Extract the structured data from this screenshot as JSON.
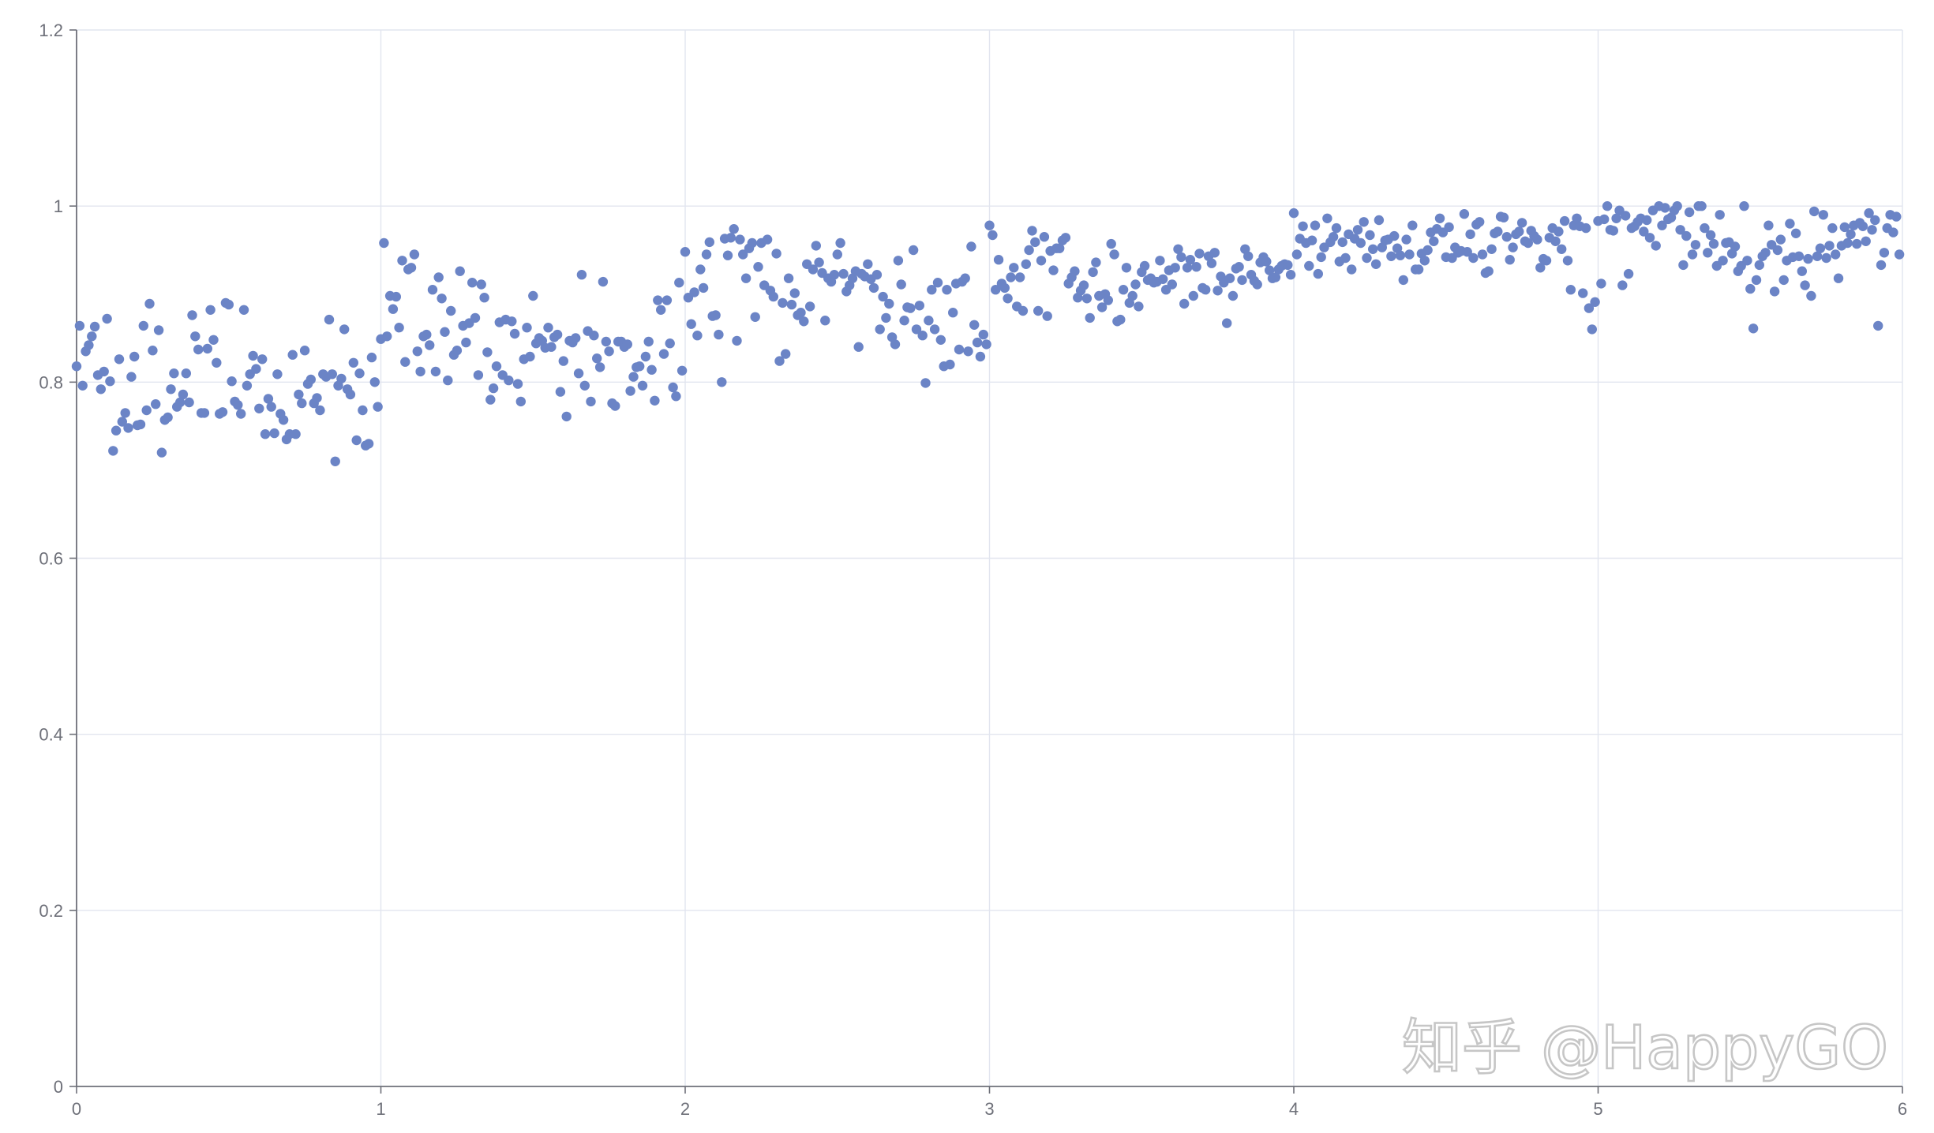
{
  "watermark": "知乎 @HappyGO",
  "colors": {
    "point": "#6b84c6",
    "grid": "#e2e5ef",
    "axis": "#6e7079",
    "tick_text": "#6e7079",
    "watermark": "#c4c4c4"
  },
  "chart_data": {
    "type": "scatter",
    "title": "",
    "xlabel": "",
    "ylabel": "",
    "xlim": [
      0,
      6
    ],
    "ylim": [
      0,
      1.2
    ],
    "x_ticks": [
      "0",
      "1",
      "2",
      "3",
      "4",
      "5",
      "6"
    ],
    "y_ticks": [
      "0",
      "0.2",
      "0.4",
      "0.6",
      "0.8",
      "1",
      "1.2"
    ],
    "grid": true,
    "legend": "none",
    "series": [
      {
        "points_per_interval": 100,
        "interval_step": 0.01,
        "values": [
          0.818,
          0.864,
          0.796,
          0.835,
          0.842,
          0.852,
          0.863,
          0.808,
          0.792,
          0.812,
          0.872,
          0.801,
          0.722,
          0.745,
          0.826,
          0.755,
          0.765,
          0.748,
          0.806,
          0.829,
          0.751,
          0.752,
          0.864,
          0.768,
          0.889,
          0.836,
          0.775,
          0.859,
          0.72,
          0.757,
          0.76,
          0.792,
          0.81,
          0.772,
          0.777,
          0.786,
          0.81,
          0.777,
          0.876,
          0.852,
          0.837,
          0.765,
          0.765,
          0.838,
          0.882,
          0.848,
          0.822,
          0.764,
          0.766,
          0.89,
          0.888,
          0.801,
          0.778,
          0.774,
          0.764,
          0.882,
          0.796,
          0.809,
          0.83,
          0.815,
          0.77,
          0.826,
          0.741,
          0.781,
          0.772,
          0.742,
          0.809,
          0.764,
          0.757,
          0.735,
          0.741,
          0.831,
          0.741,
          0.786,
          0.776,
          0.836,
          0.798,
          0.803,
          0.776,
          0.782,
          0.768,
          0.809,
          0.806,
          0.871,
          0.809,
          0.71,
          0.796,
          0.804,
          0.86,
          0.792,
          0.786,
          0.822,
          0.734,
          0.81,
          0.768,
          0.728,
          0.73,
          0.828,
          0.8,
          0.772
        ]
      },
      {
        "points_per_interval": 100,
        "interval_step": 0.01,
        "values": [
          0.849,
          0.958,
          0.852,
          0.898,
          0.883,
          0.897,
          0.862,
          0.938,
          0.823,
          0.928,
          0.93,
          0.945,
          0.835,
          0.812,
          0.852,
          0.854,
          0.842,
          0.905,
          0.812,
          0.919,
          0.895,
          0.857,
          0.802,
          0.881,
          0.831,
          0.836,
          0.926,
          0.864,
          0.845,
          0.867,
          0.913,
          0.873,
          0.808,
          0.911,
          0.896,
          0.834,
          0.78,
          0.793,
          0.818,
          0.868,
          0.808,
          0.871,
          0.802,
          0.869,
          0.855,
          0.798,
          0.778,
          0.826,
          0.862,
          0.829,
          0.898,
          0.844,
          0.85,
          0.847,
          0.839,
          0.862,
          0.84,
          0.851,
          0.854,
          0.789,
          0.824,
          0.761,
          0.847,
          0.845,
          0.85,
          0.81,
          0.922,
          0.796,
          0.858,
          0.778,
          0.853,
          0.827,
          0.817,
          0.914,
          0.846,
          0.835,
          0.776,
          0.773,
          0.846,
          0.846,
          0.84,
          0.843,
          0.79,
          0.806,
          0.817,
          0.818,
          0.796,
          0.829,
          0.846,
          0.814,
          0.779,
          0.893,
          0.882,
          0.832,
          0.893,
          0.844,
          0.794,
          0.784,
          0.913,
          0.813
        ]
      },
      {
        "points_per_interval": 100,
        "interval_step": 0.01,
        "values": [
          0.948,
          0.896,
          0.866,
          0.902,
          0.853,
          0.928,
          0.907,
          0.945,
          0.959,
          0.875,
          0.876,
          0.854,
          0.8,
          0.963,
          0.944,
          0.964,
          0.974,
          0.847,
          0.962,
          0.945,
          0.918,
          0.952,
          0.958,
          0.874,
          0.931,
          0.958,
          0.91,
          0.962,
          0.904,
          0.897,
          0.946,
          0.824,
          0.89,
          0.832,
          0.918,
          0.888,
          0.901,
          0.876,
          0.879,
          0.869,
          0.934,
          0.886,
          0.928,
          0.955,
          0.936,
          0.924,
          0.87,
          0.918,
          0.914,
          0.922,
          0.945,
          0.958,
          0.923,
          0.903,
          0.91,
          0.918,
          0.926,
          0.84,
          0.923,
          0.92,
          0.934,
          0.917,
          0.907,
          0.922,
          0.86,
          0.897,
          0.873,
          0.889,
          0.851,
          0.843,
          0.938,
          0.911,
          0.87,
          0.885,
          0.884,
          0.95,
          0.86,
          0.887,
          0.853,
          0.799,
          0.87,
          0.905,
          0.86,
          0.913,
          0.848,
          0.818,
          0.905,
          0.82,
          0.879,
          0.912,
          0.837,
          0.914,
          0.918,
          0.835,
          0.954,
          0.865,
          0.845,
          0.829,
          0.854,
          0.843
        ]
      },
      {
        "points_per_interval": 100,
        "interval_step": 0.01,
        "values": [
          0.978,
          0.967,
          0.905,
          0.939,
          0.912,
          0.907,
          0.895,
          0.919,
          0.93,
          0.886,
          0.919,
          0.881,
          0.934,
          0.95,
          0.972,
          0.959,
          0.881,
          0.938,
          0.965,
          0.875,
          0.949,
          0.927,
          0.952,
          0.952,
          0.961,
          0.964,
          0.912,
          0.919,
          0.926,
          0.896,
          0.904,
          0.91,
          0.895,
          0.873,
          0.925,
          0.936,
          0.898,
          0.885,
          0.9,
          0.893,
          0.957,
          0.945,
          0.869,
          0.871,
          0.905,
          0.93,
          0.89,
          0.898,
          0.911,
          0.886,
          0.925,
          0.932,
          0.916,
          0.918,
          0.913,
          0.914,
          0.938,
          0.917,
          0.905,
          0.927,
          0.911,
          0.93,
          0.951,
          0.942,
          0.889,
          0.93,
          0.939,
          0.898,
          0.931,
          0.946,
          0.907,
          0.905,
          0.943,
          0.935,
          0.947,
          0.904,
          0.92,
          0.913,
          0.867,
          0.918,
          0.898,
          0.929,
          0.931,
          0.916,
          0.951,
          0.943,
          0.922,
          0.915,
          0.911,
          0.936,
          0.942,
          0.937,
          0.927,
          0.918,
          0.919,
          0.928,
          0.932,
          0.934,
          0.933,
          0.922
        ]
      },
      {
        "points_per_interval": 100,
        "interval_step": 0.01,
        "values": [
          0.992,
          0.945,
          0.963,
          0.977,
          0.958,
          0.932,
          0.961,
          0.978,
          0.923,
          0.942,
          0.953,
          0.986,
          0.959,
          0.965,
          0.975,
          0.937,
          0.959,
          0.941,
          0.968,
          0.928,
          0.963,
          0.973,
          0.958,
          0.982,
          0.941,
          0.967,
          0.951,
          0.934,
          0.984,
          0.953,
          0.961,
          0.962,
          0.943,
          0.966,
          0.952,
          0.944,
          0.916,
          0.962,
          0.945,
          0.978,
          0.928,
          0.928,
          0.946,
          0.938,
          0.95,
          0.97,
          0.96,
          0.974,
          0.986,
          0.97,
          0.942,
          0.976,
          0.941,
          0.953,
          0.947,
          0.949,
          0.991,
          0.948,
          0.968,
          0.941,
          0.979,
          0.982,
          0.945,
          0.924,
          0.926,
          0.951,
          0.969,
          0.971,
          0.988,
          0.987,
          0.965,
          0.939,
          0.953,
          0.968,
          0.971,
          0.981,
          0.96,
          0.958,
          0.972,
          0.966,
          0.962,
          0.93,
          0.94,
          0.938,
          0.964,
          0.975,
          0.96,
          0.971,
          0.951,
          0.983,
          0.938,
          0.905,
          0.978,
          0.986,
          0.977,
          0.901,
          0.975,
          0.884,
          0.86,
          0.891
        ]
      },
      {
        "points_per_interval": 100,
        "interval_step": 0.01,
        "values": [
          0.983,
          0.912,
          0.985,
          1.0,
          0.973,
          0.972,
          0.986,
          0.995,
          0.91,
          0.989,
          0.923,
          0.975,
          0.977,
          0.982,
          0.986,
          0.971,
          0.984,
          0.964,
          0.995,
          0.955,
          1.0,
          0.978,
          0.998,
          0.985,
          0.987,
          0.995,
          1.0,
          0.973,
          0.933,
          0.966,
          0.993,
          0.945,
          0.956,
          1.0,
          1.0,
          0.975,
          0.947,
          0.967,
          0.957,
          0.932,
          0.99,
          0.938,
          0.958,
          0.959,
          0.946,
          0.954,
          0.926,
          0.932,
          1.0,
          0.938,
          0.906,
          0.861,
          0.916,
          0.933,
          0.943,
          0.947,
          0.978,
          0.956,
          0.903,
          0.95,
          0.962,
          0.916,
          0.938,
          0.98,
          0.942,
          0.969,
          0.943,
          0.926,
          0.91,
          0.94,
          0.898,
          0.994,
          0.943,
          0.952,
          0.99,
          0.941,
          0.955,
          0.975,
          0.945,
          0.918,
          0.955,
          0.976,
          0.958,
          0.968,
          0.978,
          0.957,
          0.981,
          0.977,
          0.96,
          0.992,
          0.973,
          0.984,
          0.864,
          0.933,
          0.947,
          0.975,
          0.99,
          0.97,
          0.988,
          0.945
        ]
      }
    ]
  }
}
